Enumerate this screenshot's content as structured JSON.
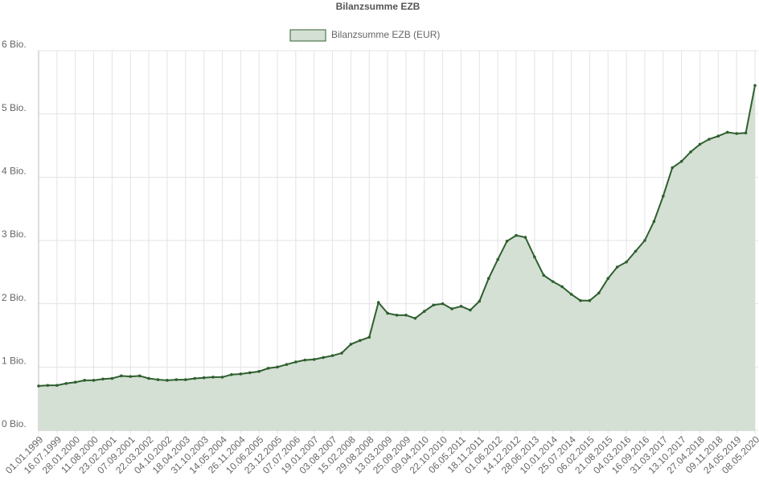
{
  "chart_data": {
    "type": "line",
    "title": "Bilanzsumme EZB",
    "categories": [
      "01.01.1999",
      null,
      "16.07.1999",
      null,
      "28.01.2000",
      null,
      "11.08.2000",
      null,
      "23.02.2001",
      null,
      "07.09.2001",
      null,
      "22.03.2002",
      null,
      "04.10.2002",
      null,
      "18.04.2003",
      null,
      "31.10.2003",
      null,
      "14.05.2004",
      null,
      "26.11.2004",
      null,
      "10.06.2005",
      null,
      "23.12.2005",
      null,
      "07.07.2006",
      null,
      "19.01.2007",
      null,
      "03.08.2007",
      null,
      "15.02.2008",
      null,
      "29.08.2008",
      null,
      "13.03.2009",
      null,
      "25.09.2009",
      null,
      "09.04.2010",
      null,
      "22.10.2010",
      null,
      "06.05.2011",
      null,
      "18.11.2011",
      null,
      "01.06.2012",
      null,
      "14.12.2012",
      null,
      "28.06.2013",
      null,
      "10.01.2014",
      null,
      "25.07.2014",
      null,
      "06.02.2015",
      null,
      "21.08.2015",
      null,
      "04.03.2016",
      null,
      "16.09.2016",
      null,
      "31.03.2017",
      null,
      "13.10.2017",
      null,
      "27.04.2018",
      null,
      "09.11.2018",
      null,
      "24.05.2019",
      null,
      "08.05.2020"
    ],
    "series": [
      {
        "name": "Bilanzsumme EZB (EUR)",
        "color": "#2f5f2f",
        "fill": "#d4e0d4",
        "values": [
          0.7,
          0.71,
          0.71,
          0.74,
          0.76,
          0.79,
          0.79,
          0.81,
          0.82,
          0.86,
          0.85,
          0.86,
          0.82,
          0.8,
          0.79,
          0.8,
          0.8,
          0.82,
          0.83,
          0.84,
          0.84,
          0.88,
          0.89,
          0.91,
          0.93,
          0.98,
          1.0,
          1.04,
          1.08,
          1.11,
          1.12,
          1.15,
          1.18,
          1.22,
          1.36,
          1.42,
          1.47,
          2.02,
          1.85,
          1.82,
          1.82,
          1.77,
          1.88,
          1.98,
          2.0,
          1.92,
          1.96,
          1.9,
          2.04,
          2.4,
          2.7,
          2.99,
          3.08,
          3.05,
          2.74,
          2.45,
          2.35,
          2.27,
          2.15,
          2.05,
          2.05,
          2.17,
          2.4,
          2.58,
          2.66,
          2.83,
          3.0,
          3.3,
          3.7,
          4.15,
          4.25,
          4.4,
          4.52,
          4.6,
          4.65,
          4.71,
          4.69,
          4.7,
          5.45
        ]
      }
    ],
    "ylim": [
      0,
      6
    ],
    "yticks": [
      {
        "value": 0,
        "label": "0 Bio."
      },
      {
        "value": 1,
        "label": "1 Bio."
      },
      {
        "value": 2,
        "label": "2 Bio."
      },
      {
        "value": 3,
        "label": "3 Bio."
      },
      {
        "value": 4,
        "label": "4 Bio."
      },
      {
        "value": 5,
        "label": "5 Bio."
      },
      {
        "value": 6,
        "label": "6 Bio."
      }
    ],
    "grid": true
  }
}
